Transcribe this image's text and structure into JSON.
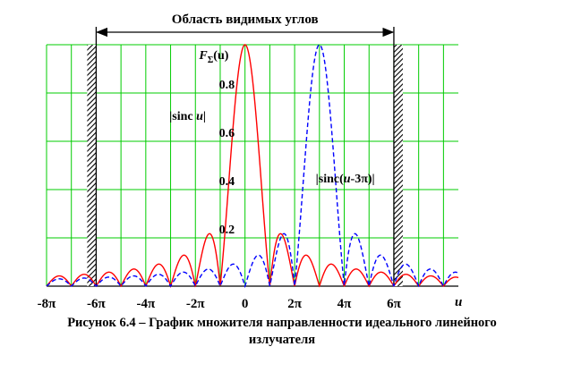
{
  "chart_data": {
    "type": "line",
    "region_label": "Область видимых углов",
    "visible_range_pi": [
      -6,
      6
    ],
    "xlim_pi": [
      -8,
      8.6
    ],
    "ylim": [
      0,
      1
    ],
    "grid": true,
    "x_axis_label": "u",
    "x_ticks": [
      {
        "pi": -8,
        "label": "-8π"
      },
      {
        "pi": -6,
        "label": "-6π"
      },
      {
        "pi": -4,
        "label": "-4π"
      },
      {
        "pi": -2,
        "label": "-2π"
      },
      {
        "pi": 0,
        "label": "0"
      },
      {
        "pi": 2,
        "label": "2π"
      },
      {
        "pi": 4,
        "label": "4π"
      },
      {
        "pi": 6,
        "label": "6π"
      }
    ],
    "y_ticks": [
      {
        "value": 0.2,
        "label": "0.2"
      },
      {
        "value": 0.4,
        "label": "0.4"
      },
      {
        "value": 0.6,
        "label": "0.6"
      },
      {
        "value": 0.8,
        "label": "0.8"
      }
    ],
    "y_axis_title": {
      "main": "F",
      "sub": "Σ",
      "arg": "(u)"
    },
    "series": [
      {
        "formula": "|sinc u|",
        "shift_pi": 0,
        "color": "#ff0000",
        "style": "solid",
        "label_parts": [
          "|sinc ",
          "u",
          "|"
        ]
      },
      {
        "formula": "|sinc(u-3π)|",
        "shift_pi": 3,
        "color": "#0000ff",
        "style": "dashed",
        "label_parts": [
          "|sinc(",
          "u",
          "-3π)|"
        ]
      }
    ]
  },
  "caption": {
    "line1": "Рисунок 6.4 – График множителя направленности идеального линейного",
    "line2": "излучателя"
  }
}
